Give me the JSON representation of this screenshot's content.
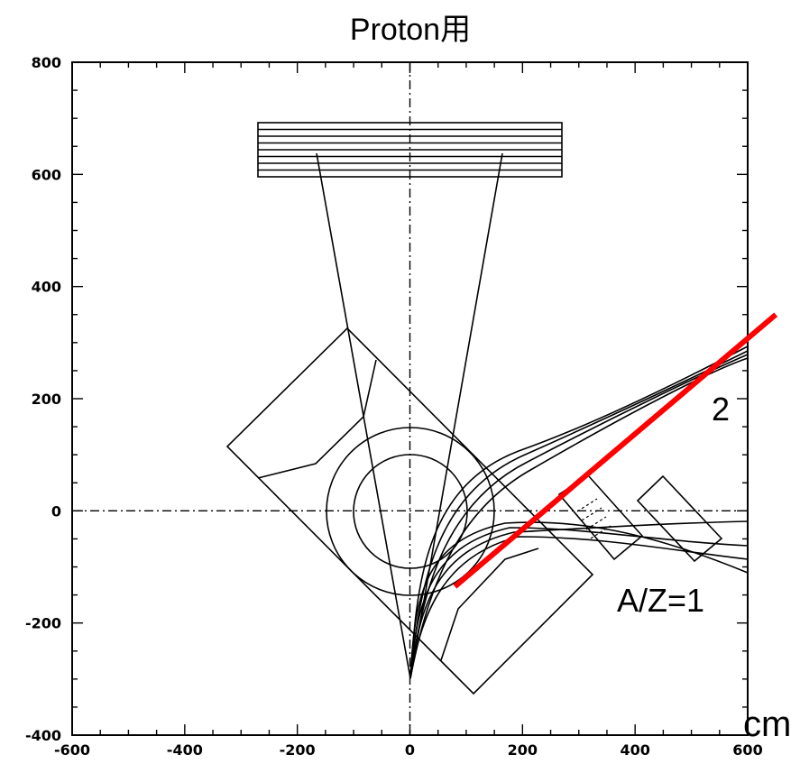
{
  "title": "Proton用",
  "unit_label": "cm",
  "labels": {
    "trajectory_upper": "2",
    "trajectory_lower": "A/Z=1"
  },
  "colors": {
    "frame": "#000000",
    "highlight": "#ff0000"
  },
  "chart_data": {
    "type": "diagram",
    "title": "Proton用",
    "xlim": [
      -600,
      600
    ],
    "ylim": [
      -400,
      800
    ],
    "x_ticks": [
      "-600",
      "-400",
      "-200",
      "0",
      "200",
      "400",
      "600"
    ],
    "y_ticks": [
      "-400",
      "-200",
      "0",
      "200",
      "400",
      "600",
      "800"
    ],
    "unit": "cm",
    "reference_lines": {
      "x": 0,
      "y": 0,
      "style": "dash-dot"
    },
    "red_line": [
      [
        80,
        -135
      ],
      [
        650,
        350
      ]
    ],
    "annotations": [
      "2",
      "A/Z=1"
    ]
  }
}
